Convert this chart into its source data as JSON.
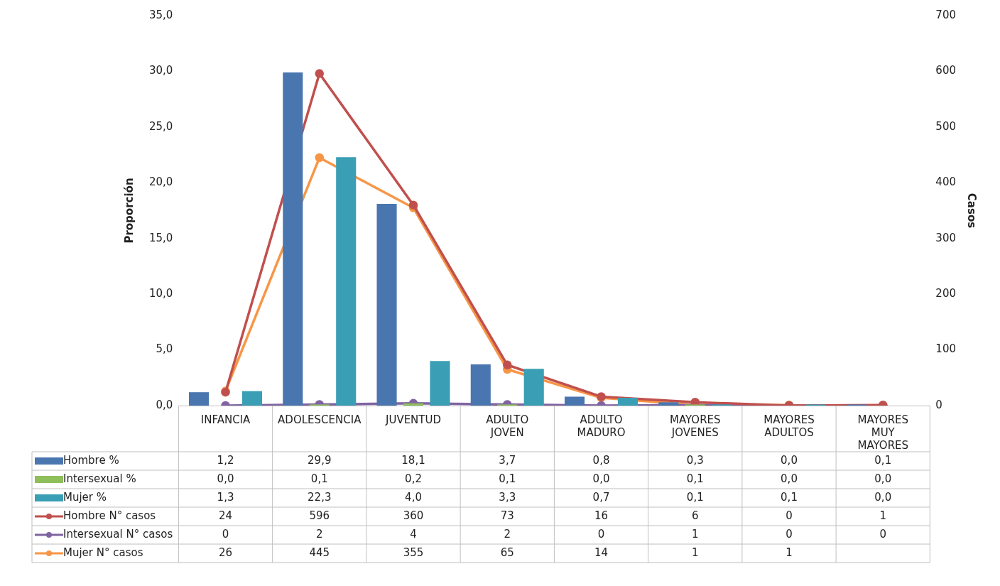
{
  "chart_data": {
    "type": "bar",
    "ylabel": "Proporción",
    "y2label": "Casos",
    "categories": [
      "INFANCIA",
      "ADOLESCENCIA",
      "JUVENTUD",
      "ADULTO JOVEN",
      "ADULTO MADURO",
      "MAYORES JOVENES",
      "MAYORES ADULTOS",
      "MAYORES MUY MAYORES"
    ],
    "series": [
      {
        "name": "Hombre %",
        "color": "#4a76b0",
        "values": [
          1.2,
          29.9,
          18.1,
          3.7,
          0.8,
          0.3,
          0.0,
          0.1
        ],
        "value_labels": [
          "1,2",
          "29,9",
          "18,1",
          "3,7",
          "0,8",
          "0,3",
          "0,0",
          "0,1"
        ]
      },
      {
        "name": "Intersexual %",
        "color": "#8fbf5a",
        "values": [
          0.0,
          0.1,
          0.2,
          0.1,
          0.0,
          0.1,
          0.0,
          0.0
        ],
        "value_labels": [
          "0,0",
          "0,1",
          "0,2",
          "0,1",
          "0,0",
          "0,1",
          "0,0",
          "0,0"
        ]
      },
      {
        "name": "Mujer %",
        "color": "#3a9fb5",
        "values": [
          1.3,
          22.3,
          4.0,
          3.3,
          0.7,
          0.1,
          0.1,
          0.0
        ],
        "value_labels": [
          "1,3",
          "22,3",
          "4,0",
          "3,3",
          "0,7",
          "0,1",
          "0,1",
          "0,0"
        ]
      },
      {
        "name": "Hombre N° casos",
        "type": "line",
        "axis": "y2",
        "color": "#c0504d",
        "values": [
          24,
          596,
          360,
          73,
          16,
          6,
          0,
          1
        ],
        "value_labels": [
          "24",
          "596",
          "360",
          "73",
          "16",
          "6",
          "0",
          "1"
        ]
      },
      {
        "name": "Intersexual N° casos",
        "type": "line",
        "axis": "y2",
        "color": "#8064a2",
        "values": [
          0,
          2,
          4,
          2,
          0,
          1,
          0,
          0
        ],
        "value_labels": [
          "0",
          "2",
          "4",
          "2",
          "0",
          "1",
          "0",
          "0"
        ]
      },
      {
        "name": "Mujer N° casos",
        "type": "line",
        "axis": "y2",
        "color": "#f79646",
        "values": [
          26,
          445,
          355,
          65,
          14,
          1,
          1,
          null
        ],
        "value_labels": [
          "26",
          "445",
          "355",
          "65",
          "14",
          "1",
          "1",
          null
        ]
      }
    ],
    "ylim": [
      0,
      35
    ],
    "yticks": [
      {
        "value": 0,
        "label": "0,0"
      },
      {
        "value": 5,
        "label": "5,0"
      },
      {
        "value": 10,
        "label": "10,0"
      },
      {
        "value": 15,
        "label": "15,0"
      },
      {
        "value": 20,
        "label": "20,0"
      },
      {
        "value": 25,
        "label": "25,0"
      },
      {
        "value": 30,
        "label": "30,0"
      },
      {
        "value": 35,
        "label": "35,0"
      }
    ],
    "y2lim": [
      0,
      700
    ],
    "y2ticks": [
      0,
      100,
      200,
      300,
      400,
      500,
      600,
      700
    ],
    "grid": false,
    "legend": "bottom",
    "marker": "circle",
    "line_style": "solid"
  }
}
